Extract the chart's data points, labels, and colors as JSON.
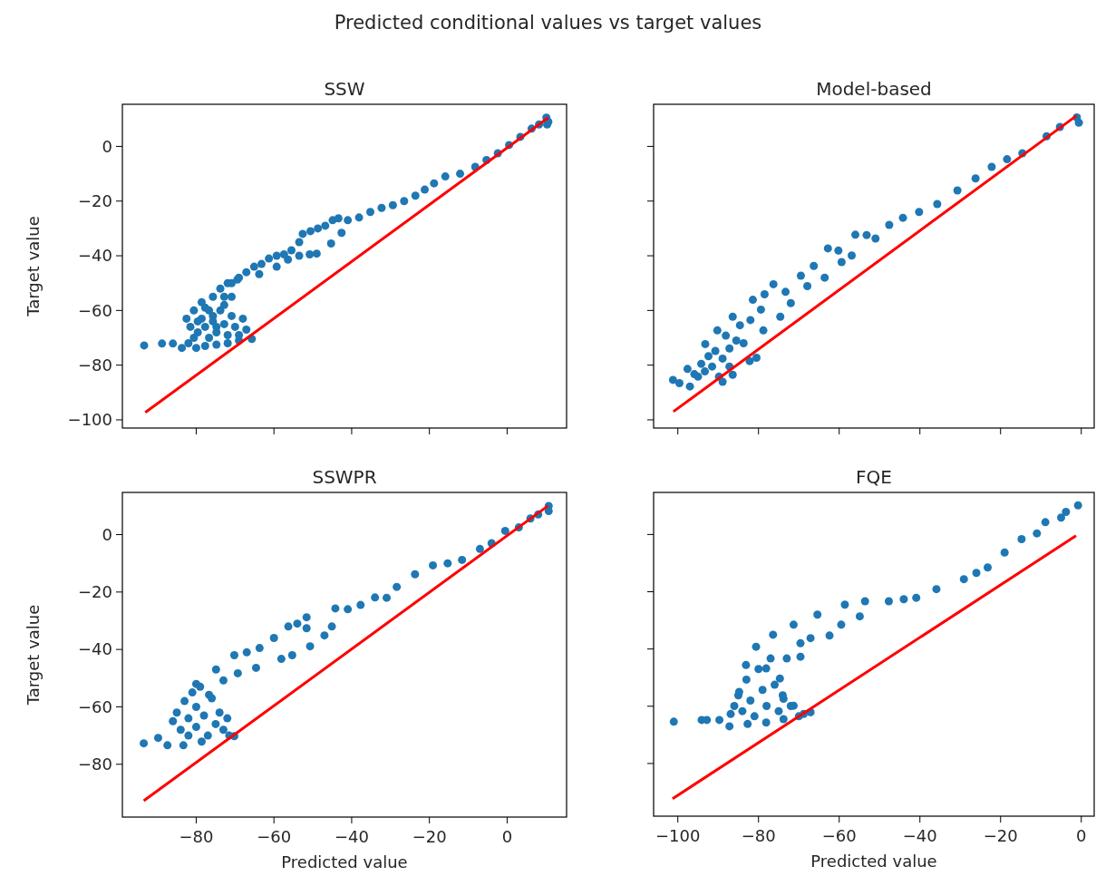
{
  "chart_data": [
    {
      "type": "scatter",
      "title": "SSW",
      "ylabel": "Target value",
      "annotations": [
        "Predicted conditional values vs target values"
      ],
      "xlim": [
        -99,
        15.3
      ],
      "ylim": [
        -103,
        15.4
      ],
      "xticks": [
        {
          "value": -80,
          "label": null
        },
        {
          "value": -60,
          "label": null
        },
        {
          "value": -40,
          "label": null
        },
        {
          "value": -20,
          "label": null
        },
        {
          "value": 0,
          "label": null
        }
      ],
      "yticks": [
        -100,
        -80,
        -60,
        -40,
        -20,
        0
      ],
      "tick_labels": "y",
      "grid": false,
      "series": [
        {
          "type": "scatter",
          "color": "#1f77b4",
          "marker": "circle",
          "x": [
            -93.4,
            -88.8,
            -86,
            -83.7,
            -82,
            -80,
            -77.7,
            -74.8,
            -71.9,
            -69,
            -65.7,
            -82.5,
            -81.5,
            -80.6,
            -79.6,
            -78.6,
            -78.6,
            -77.7,
            -76.7,
            -76.7,
            -75.7,
            -75.7,
            -74.8,
            -73.8,
            -73.8,
            -72.8,
            -71.9,
            -71.9,
            -70.9,
            -70,
            -69,
            -69,
            -68,
            -67.1,
            -67.1,
            -80.6,
            -79.6,
            -77.7,
            -75.7,
            -74.8,
            -72.8,
            -70.9,
            -65.1,
            -63.2,
            -61.3,
            -59.3,
            -57.4,
            -55.5,
            -53.5,
            -52.6,
            -50.6,
            -48.7,
            -46.8,
            -44.9,
            -43.4,
            -41,
            -38.1,
            -35.2,
            -32.3,
            -29.4,
            -26.5,
            -23.6,
            -21.2,
            -18.8,
            -15.9,
            -12.1,
            -8.2,
            -5.3,
            -2.4,
            0.5,
            3.4,
            6.3,
            8.2,
            10.1,
            10.6,
            10.3,
            -72.8,
            -70.9,
            -69.4,
            -63.8,
            -59.3,
            -56.4,
            -53.5,
            -50.8,
            -49,
            -45.3,
            -42.6
          ],
          "values": [
            -72.8,
            -72.1,
            -72.1,
            -73.7,
            -72,
            -73.7,
            -73,
            -72.5,
            -72,
            -71,
            -70.4,
            -63,
            -66,
            -60,
            -68,
            -57,
            -63,
            -66,
            -70,
            -60,
            -55,
            -64,
            -68,
            -52,
            -60,
            -65,
            -69,
            -50,
            -62,
            -66,
            -48,
            -69,
            -63,
            -67,
            -46,
            -70,
            -64,
            -59,
            -62,
            -66,
            -58,
            -55,
            -44,
            -43,
            -41,
            -40,
            -39.5,
            -38,
            -35,
            -32,
            -31,
            -30,
            -29,
            -27,
            -26.3,
            -27,
            -26,
            -24,
            -22.5,
            -21.5,
            -20,
            -18,
            -15.8,
            -13.5,
            -11,
            -10,
            -7.5,
            -5,
            -2.5,
            0.5,
            3.5,
            6.5,
            8,
            10.5,
            9,
            8,
            -55,
            -50,
            -48.7,
            -46.7,
            -44,
            -41.4,
            -40,
            -39.5,
            -39.2,
            -35.5,
            -31.6
          ]
        },
        {
          "type": "line",
          "color": "#ff0000",
          "x": [
            -93.1,
            10.6
          ],
          "values": [
            -97.3,
            10.5
          ]
        }
      ]
    },
    {
      "type": "scatter",
      "title": "Model-based",
      "xlim": [
        -106,
        3.2
      ],
      "ylim": [
        -103,
        15.4
      ],
      "xticks": [
        {
          "value": -100,
          "label": null
        },
        {
          "value": -80,
          "label": null
        },
        {
          "value": -60,
          "label": null
        },
        {
          "value": -40,
          "label": null
        },
        {
          "value": -20,
          "label": null
        },
        {
          "value": 0,
          "label": null
        }
      ],
      "yticks": [
        {
          "value": -100,
          "label": null
        },
        {
          "value": -80,
          "label": null
        },
        {
          "value": -60,
          "label": null
        },
        {
          "value": -40,
          "label": null
        },
        {
          "value": -20,
          "label": null
        },
        {
          "value": 0,
          "label": null
        }
      ],
      "tick_labels": false,
      "grid": false,
      "series": [
        {
          "type": "scatter",
          "color": "#1f77b4",
          "marker": "circle",
          "x": [
            -101.2,
            -99.6,
            -97,
            -95,
            -93.3,
            -91.5,
            -89.8,
            -95.9,
            -94.2,
            -92.4,
            -90.7,
            -88.9,
            -87.2,
            -85.5,
            -93.2,
            -90.2,
            -86.4,
            -81.4,
            -76.3,
            -69.5,
            -62.8,
            -56,
            -47.6,
            -44.2,
            -35.7,
            -30.7,
            -22.2,
            -14.6,
            -8.6,
            -1.1,
            -0.6,
            -86.4,
            -82.2,
            -80.5,
            -78.8,
            -74.6,
            -72,
            -67.9,
            -63.6,
            -59.4,
            -56.9,
            -51,
            -88.1,
            -84.6,
            -83.7,
            -82,
            -79.4,
            -78.5,
            -73.3,
            -66.3,
            -60.2,
            -53.2,
            -40.2,
            -26.2,
            -18.4,
            -5.3,
            -97.6,
            -88.9,
            -87.2
          ],
          "values": [
            -85.4,
            -86.6,
            -87.8,
            -84.2,
            -82.3,
            -80.5,
            -84.2,
            -83.3,
            -79.5,
            -76.7,
            -74.8,
            -77.6,
            -73.9,
            -71,
            -72.3,
            -67.3,
            -62.3,
            -56.1,
            -50.4,
            -47.3,
            -37.3,
            -32.3,
            -28.7,
            -26.1,
            -21.1,
            -16.1,
            -7.5,
            -2.5,
            3.7,
            10.6,
            8.7,
            -83.5,
            -78.5,
            -77.3,
            -67.3,
            -62.3,
            -57.3,
            -51.1,
            -48,
            -42.3,
            -39.9,
            -33.7,
            -69.2,
            -65.4,
            -72,
            -63.5,
            -59.7,
            -54.1,
            -53.2,
            -43.7,
            -38.1,
            -32.4,
            -24,
            -11.7,
            -4.7,
            7.1,
            -81.4,
            -86.1,
            -80.5
          ]
        },
        {
          "type": "line",
          "color": "#ff0000",
          "x": [
            -101.1,
            -1.2
          ],
          "values": [
            -97,
            11.2
          ]
        }
      ]
    },
    {
      "type": "scatter",
      "title": "SSWPR",
      "xlabel": "Predicted value",
      "ylabel": "Target value",
      "xlim": [
        -99,
        15.3
      ],
      "ylim": [
        -98.4,
        14.7
      ],
      "xticks": [
        -80,
        -60,
        -40,
        -20,
        0
      ],
      "yticks": [
        -80,
        -60,
        -40,
        -20,
        0
      ],
      "grid": false,
      "series": [
        {
          "type": "scatter",
          "color": "#1f77b4",
          "marker": "circle",
          "x": [
            -93.5,
            -89.8,
            -87.4,
            -83.3,
            -78.6,
            -70.2,
            -86,
            -85,
            -84,
            -83,
            -82,
            -82,
            -81,
            -80,
            -80,
            -79,
            -78,
            -77,
            -76,
            -75,
            -74,
            -73,
            -72,
            -71.5,
            -80,
            -74.9,
            -70.2,
            -63.7,
            -56.3,
            -51.6,
            -44.2,
            -37.7,
            -34,
            -28.4,
            -23.7,
            -19.1,
            -15.3,
            -11.6,
            -7,
            -0.5,
            6,
            10.7,
            10.7,
            -76.7,
            -73,
            -69.3,
            -64.6,
            -58.1,
            -55.3,
            -50.7,
            -47,
            -45.1,
            -51.6,
            -67,
            -60,
            -54,
            -41,
            -31,
            -4,
            3,
            8
          ],
          "values": [
            -72.7,
            -70.8,
            -73.4,
            -73.4,
            -72.1,
            -70.2,
            -65,
            -62,
            -68,
            -58,
            -64,
            -70,
            -55,
            -60,
            -67,
            -53,
            -63,
            -70,
            -57,
            -66,
            -62,
            -68,
            -64,
            -70,
            -52,
            -47,
            -42,
            -39.5,
            -32,
            -28.8,
            -25.7,
            -24.5,
            -21.9,
            -18.2,
            -13.8,
            -10.7,
            -10,
            -8.8,
            -5,
            1.3,
            5.6,
            10,
            8.2,
            -55.8,
            -50.8,
            -48.3,
            -46.4,
            -43.3,
            -42,
            -38.9,
            -35.1,
            -32,
            -32.6,
            -41,
            -36,
            -31,
            -26,
            -22,
            -3,
            2.5,
            7
          ]
        },
        {
          "type": "line",
          "color": "#ff0000",
          "x": [
            -93.5,
            10.5
          ],
          "values": [
            -92.7,
            10
          ]
        }
      ]
    },
    {
      "type": "scatter",
      "title": "FQE",
      "xlabel": "Predicted value",
      "xlim": [
        -106,
        3.2
      ],
      "ylim": [
        -98.4,
        14.7
      ],
      "xticks": [
        -100,
        -80,
        -60,
        -40,
        -20,
        0
      ],
      "yticks": [
        {
          "value": -80,
          "label": null
        },
        {
          "value": -60,
          "label": null
        },
        {
          "value": -40,
          "label": null
        },
        {
          "value": -20,
          "label": null
        },
        {
          "value": 0,
          "label": null
        }
      ],
      "tick_labels": "x",
      "grid": false,
      "series": [
        {
          "type": "scatter",
          "color": "#1f77b4",
          "marker": "circle",
          "x": [
            -101,
            -94.1,
            -92.8,
            -89.7,
            -87.2,
            -86.9,
            -82.7,
            -78.1,
            -73.8,
            -68.8,
            -67.1,
            -86,
            -85,
            -84,
            -83,
            -82,
            -81,
            -80,
            -79,
            -78,
            -77,
            -76,
            -75,
            -74,
            -72,
            -70,
            -84.8,
            -83.1,
            -80.6,
            -76.4,
            -71.3,
            -65.4,
            -58.6,
            -53.6,
            -47.7,
            -40.9,
            -35.9,
            -29.1,
            -23.2,
            -19,
            -14.8,
            -8.9,
            -3.8,
            -0.8,
            -78.1,
            -74.7,
            -73,
            -69.6,
            -67.1,
            -62.4,
            -59.5,
            -54.9,
            -69.6,
            -73.8,
            -71.3,
            -44,
            -26,
            -11,
            -5
          ],
          "values": [
            -65.4,
            -64.8,
            -64.8,
            -64.8,
            -67,
            -62.7,
            -66.2,
            -65.7,
            -64.5,
            -62.7,
            -62.1,
            -59.9,
            -56.2,
            -61.7,
            -50.7,
            -58,
            -63.5,
            -47,
            -54.3,
            -59.9,
            -43.3,
            -52.5,
            -61.7,
            -56.2,
            -59.9,
            -63.5,
            -55,
            -45.6,
            -39.2,
            -35,
            -31.5,
            -28,
            -24.5,
            -23.3,
            -23.3,
            -22.1,
            -19.1,
            -15.6,
            -11.5,
            -6.3,
            -1.6,
            4.3,
            7.9,
            10.2,
            -46.8,
            -50.3,
            -43.3,
            -42.7,
            -36.2,
            -35.3,
            -31.5,
            -28.6,
            -38,
            -57.4,
            -59.8,
            -22.6,
            -13.4,
            0.4,
            5.9
          ]
        },
        {
          "type": "line",
          "color": "#ff0000",
          "x": [
            -101.3,
            -1.3
          ],
          "values": [
            -92.3,
            -0.4
          ]
        }
      ]
    }
  ]
}
